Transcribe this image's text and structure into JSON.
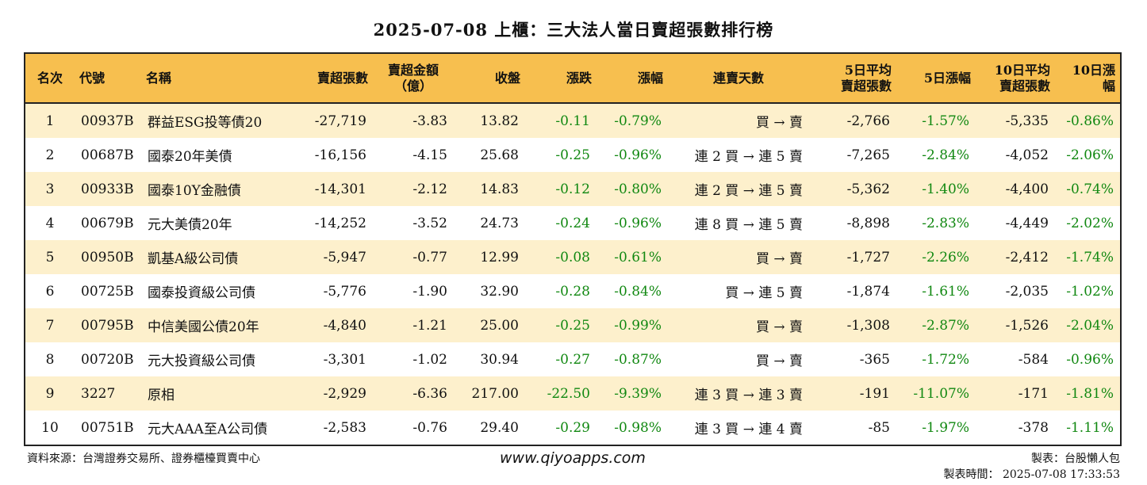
{
  "title": "2025-07-08 上櫃：三大法人當日賣超張數排行榜",
  "headers": [
    {
      "key": "rank",
      "label": "名次"
    },
    {
      "key": "code",
      "label": "代號"
    },
    {
      "key": "name",
      "label": "名稱"
    },
    {
      "key": "sell_lots",
      "label": "賣超張數"
    },
    {
      "key": "sell_amount",
      "label": "賣超金額\n（億）"
    },
    {
      "key": "close",
      "label": "收盤"
    },
    {
      "key": "change",
      "label": "漲跌"
    },
    {
      "key": "pct",
      "label": "漲幅"
    },
    {
      "key": "streak",
      "label": "連賣天數"
    },
    {
      "key": "avg5",
      "label": "5日平均\n賣超張數"
    },
    {
      "key": "pct5",
      "label": "5日漲幅"
    },
    {
      "key": "avg10",
      "label": "10日平均\n賣超張數"
    },
    {
      "key": "pct10",
      "label": "10日漲幅"
    }
  ],
  "rows": [
    {
      "rank": "1",
      "code": "00937B",
      "name": "群益ESG投等債20",
      "sell_lots": "-27,719",
      "sell_amount": "-3.83",
      "close": "13.82",
      "change": "-0.11",
      "pct": "-0.79%",
      "streak": "買 → 賣",
      "avg5": "-2,766",
      "pct5": "-1.57%",
      "avg10": "-5,335",
      "pct10": "-0.86%"
    },
    {
      "rank": "2",
      "code": "00687B",
      "name": "國泰20年美債",
      "sell_lots": "-16,156",
      "sell_amount": "-4.15",
      "close": "25.68",
      "change": "-0.25",
      "pct": "-0.96%",
      "streak": "連 2 買 → 連 5 賣",
      "avg5": "-7,265",
      "pct5": "-2.84%",
      "avg10": "-4,052",
      "pct10": "-2.06%"
    },
    {
      "rank": "3",
      "code": "00933B",
      "name": "國泰10Y金融債",
      "sell_lots": "-14,301",
      "sell_amount": "-2.12",
      "close": "14.83",
      "change": "-0.12",
      "pct": "-0.80%",
      "streak": "連 2 買 → 連 5 賣",
      "avg5": "-5,362",
      "pct5": "-1.40%",
      "avg10": "-4,400",
      "pct10": "-0.74%"
    },
    {
      "rank": "4",
      "code": "00679B",
      "name": "元大美債20年",
      "sell_lots": "-14,252",
      "sell_amount": "-3.52",
      "close": "24.73",
      "change": "-0.24",
      "pct": "-0.96%",
      "streak": "連 8 買 → 連 5 賣",
      "avg5": "-8,898",
      "pct5": "-2.83%",
      "avg10": "-4,449",
      "pct10": "-2.02%"
    },
    {
      "rank": "5",
      "code": "00950B",
      "name": "凱基A級公司債",
      "sell_lots": "-5,947",
      "sell_amount": "-0.77",
      "close": "12.99",
      "change": "-0.08",
      "pct": "-0.61%",
      "streak": "買 → 賣",
      "avg5": "-1,727",
      "pct5": "-2.26%",
      "avg10": "-2,412",
      "pct10": "-1.74%"
    },
    {
      "rank": "6",
      "code": "00725B",
      "name": "國泰投資級公司債",
      "sell_lots": "-5,776",
      "sell_amount": "-1.90",
      "close": "32.90",
      "change": "-0.28",
      "pct": "-0.84%",
      "streak": "買 → 連 5 賣",
      "avg5": "-1,874",
      "pct5": "-1.61%",
      "avg10": "-2,035",
      "pct10": "-1.02%"
    },
    {
      "rank": "7",
      "code": "00795B",
      "name": "中信美國公債20年",
      "sell_lots": "-4,840",
      "sell_amount": "-1.21",
      "close": "25.00",
      "change": "-0.25",
      "pct": "-0.99%",
      "streak": "買 → 賣",
      "avg5": "-1,308",
      "pct5": "-2.87%",
      "avg10": "-1,526",
      "pct10": "-2.04%"
    },
    {
      "rank": "8",
      "code": "00720B",
      "name": "元大投資級公司債",
      "sell_lots": "-3,301",
      "sell_amount": "-1.02",
      "close": "30.94",
      "change": "-0.27",
      "pct": "-0.87%",
      "streak": "買 → 賣",
      "avg5": "-365",
      "pct5": "-1.72%",
      "avg10": "-584",
      "pct10": "-0.96%"
    },
    {
      "rank": "9",
      "code": "3227",
      "name": "原相",
      "sell_lots": "-2,929",
      "sell_amount": "-6.36",
      "close": "217.00",
      "change": "-22.50",
      "pct": "-9.39%",
      "streak": "連 3 買 → 連 3 賣",
      "avg5": "-191",
      "pct5": "-11.07%",
      "avg10": "-171",
      "pct10": "-1.81%"
    },
    {
      "rank": "10",
      "code": "00751B",
      "name": "元大AAA至A公司債",
      "sell_lots": "-2,583",
      "sell_amount": "-0.76",
      "close": "29.40",
      "change": "-0.29",
      "pct": "-0.98%",
      "streak": "連 3 買 → 連 4 賣",
      "avg5": "-85",
      "pct5": "-1.97%",
      "avg10": "-378",
      "pct10": "-1.11%"
    }
  ],
  "footer": {
    "source": "資料來源：台灣證券交易所、證券櫃檯買賣中心",
    "website": "www.qiyoapps.com",
    "maker": "製表：台股懶人包",
    "made_time": "製表時間： 2025-07-08 17:33:53"
  },
  "colors": {
    "header_bg": "#f7bf4f",
    "stripe_bg": "#fdf0cc",
    "negative_text": "#118811"
  }
}
